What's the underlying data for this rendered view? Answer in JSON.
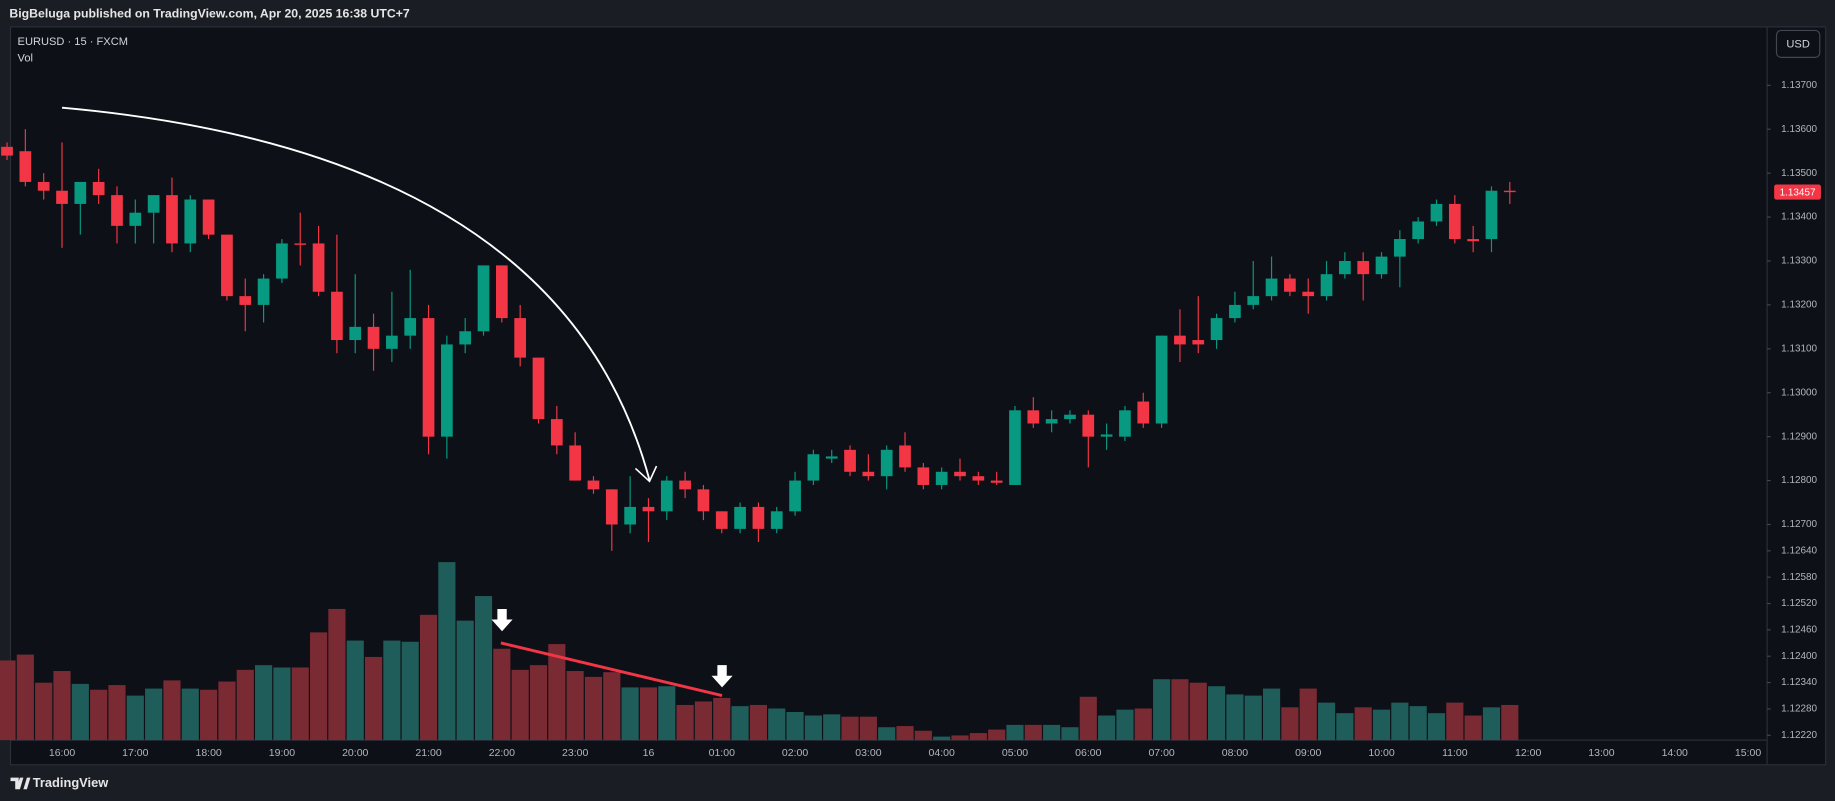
{
  "header": "BigBeluga published on TradingView.com, Apr 20, 2025 16:38 UTC+7",
  "footer": "TradingView",
  "chart_data": {
    "type": "candlestick",
    "symbol": "EURUSD · 15 · FXCM",
    "indicator": "Vol",
    "currency": "USD",
    "colors": {
      "up": "#089981",
      "down": "#f23645",
      "volume_up": "#1e5d59",
      "volume_down": "#7a2a33"
    },
    "open": [
      1.1356,
      1.1355,
      1.1348,
      1.1346,
      1.1343,
      1.1348,
      1.1345,
      1.1338,
      1.1341,
      1.1345,
      1.1334,
      1.1344,
      1.1336,
      1.1322,
      1.132,
      1.1326,
      1.1334,
      1.1334,
      1.1323,
      1.1312,
      1.1315,
      1.131,
      1.1313,
      1.1317,
      1.129,
      1.1311,
      1.1314,
      1.1329,
      1.1317,
      1.1308,
      1.1294,
      1.1288,
      1.128,
      1.1278,
      1.127,
      1.1274,
      1.1273,
      1.128,
      1.1278,
      1.1273,
      1.1269,
      1.1274,
      1.1269,
      1.1273,
      1.128,
      1.1285,
      1.1287,
      1.1282,
      1.1281,
      1.1288,
      1.1283,
      1.1279,
      1.1282,
      1.1281,
      1.128,
      1.1279,
      1.1296,
      1.1293,
      1.1294,
      1.1295,
      1.129,
      1.129,
      1.1298,
      1.1293,
      1.1313,
      1.1312,
      1.1312,
      1.1317,
      1.132,
      1.1322,
      1.1326,
      1.1323,
      1.1322,
      1.1327,
      1.133,
      1.1327,
      1.1331,
      1.1335,
      1.1339,
      1.1343,
      1.1335,
      1.1335,
      1.1346
    ],
    "high": [
      1.1357,
      1.136,
      1.135,
      1.1357,
      1.1348,
      1.1351,
      1.1347,
      1.1344,
      1.1345,
      1.1349,
      1.1345,
      1.1344,
      1.1336,
      1.1326,
      1.1327,
      1.1335,
      1.1341,
      1.1338,
      1.1336,
      1.1327,
      1.1318,
      1.1323,
      1.1328,
      1.132,
      1.1313,
      1.1317,
      1.1329,
      1.1329,
      1.132,
      1.1308,
      1.1297,
      1.1291,
      1.1281,
      1.1278,
      1.1281,
      1.1276,
      1.1281,
      1.1282,
      1.1279,
      1.1273,
      1.1275,
      1.1275,
      1.1274,
      1.1282,
      1.1287,
      1.1287,
      1.1288,
      1.1286,
      1.1288,
      1.1291,
      1.1284,
      1.1283,
      1.1285,
      1.1282,
      1.1282,
      1.1297,
      1.1299,
      1.1296,
      1.1296,
      1.1296,
      1.1293,
      1.1297,
      1.13,
      1.1313,
      1.1319,
      1.1322,
      1.1318,
      1.1323,
      1.133,
      1.1331,
      1.1327,
      1.1326,
      1.133,
      1.1332,
      1.1332,
      1.1332,
      1.1337,
      1.134,
      1.1344,
      1.1345,
      1.1338,
      1.1347,
      1.1348
    ],
    "low": [
      1.1353,
      1.1347,
      1.1344,
      1.1333,
      1.1336,
      1.1343,
      1.1334,
      1.1334,
      1.1334,
      1.1332,
      1.1332,
      1.1335,
      1.1321,
      1.1314,
      1.1316,
      1.1325,
      1.1329,
      1.1322,
      1.1309,
      1.1309,
      1.1305,
      1.1307,
      1.131,
      1.1286,
      1.1285,
      1.1309,
      1.1313,
      1.1316,
      1.1306,
      1.1293,
      1.1286,
      1.128,
      1.1277,
      1.1264,
      1.1268,
      1.1266,
      1.1271,
      1.1276,
      1.1271,
      1.1268,
      1.1268,
      1.1266,
      1.1268,
      1.1272,
      1.1279,
      1.1284,
      1.1281,
      1.128,
      1.1278,
      1.1282,
      1.1278,
      1.1278,
      1.128,
      1.1279,
      1.1279,
      1.1279,
      1.1292,
      1.1291,
      1.1293,
      1.1283,
      1.1287,
      1.1289,
      1.1292,
      1.1292,
      1.1307,
      1.1309,
      1.131,
      1.1316,
      1.1319,
      1.1321,
      1.1322,
      1.1318,
      1.1321,
      1.1326,
      1.1321,
      1.1326,
      1.1324,
      1.1334,
      1.1338,
      1.1334,
      1.1332,
      1.1332,
      1.1343
    ],
    "close": [
      1.1354,
      1.1348,
      1.1346,
      1.1343,
      1.1348,
      1.1345,
      1.1338,
      1.1341,
      1.1345,
      1.1334,
      1.1344,
      1.1336,
      1.1322,
      1.132,
      1.1326,
      1.1334,
      1.13337,
      1.1323,
      1.1312,
      1.1315,
      1.131,
      1.1313,
      1.1317,
      1.129,
      1.1311,
      1.1314,
      1.1329,
      1.1317,
      1.1308,
      1.1294,
      1.1288,
      1.128,
      1.1278,
      1.127,
      1.1274,
      1.1273,
      1.128,
      1.1278,
      1.1273,
      1.1269,
      1.1274,
      1.1269,
      1.1273,
      1.128,
      1.1286,
      1.12855,
      1.1282,
      1.1281,
      1.1287,
      1.1283,
      1.1279,
      1.1282,
      1.1281,
      1.128,
      1.12795,
      1.1296,
      1.1293,
      1.1294,
      1.1295,
      1.129,
      1.12905,
      1.1296,
      1.1293,
      1.1313,
      1.1311,
      1.1311,
      1.1317,
      1.132,
      1.1322,
      1.1326,
      1.1323,
      1.1322,
      1.1327,
      1.133,
      1.1327,
      1.1331,
      1.1335,
      1.1339,
      1.1343,
      1.1335,
      1.13345,
      1.1346,
      1.13457
    ],
    "volume": [
      68,
      73,
      49,
      59,
      48,
      43,
      47,
      38,
      44,
      51,
      44,
      43,
      50,
      60,
      64,
      62,
      62,
      92,
      112,
      85,
      71,
      85,
      84,
      107,
      152,
      102,
      123,
      78,
      60,
      64,
      82,
      59,
      54,
      58,
      45,
      45,
      46,
      30,
      33,
      36,
      29,
      30,
      27,
      24,
      21,
      22,
      20,
      20,
      11,
      12,
      8,
      3,
      4,
      6,
      9,
      13,
      13,
      13,
      11,
      37,
      21,
      26,
      27,
      52,
      52,
      49,
      46,
      39,
      38,
      44,
      28,
      44,
      32,
      23,
      28,
      26,
      32,
      29,
      23,
      32,
      21,
      28,
      30
    ],
    "ylim": [
      1.12209,
      1.13833
    ],
    "yticks": [
      {
        "value": 1.137,
        "label": "1.13700"
      },
      {
        "value": 1.136,
        "label": "1.13600"
      },
      {
        "value": 1.135,
        "label": "1.13500"
      },
      {
        "value": 1.134,
        "label": "1.13400"
      },
      {
        "value": 1.133,
        "label": "1.13300"
      },
      {
        "value": 1.132,
        "label": "1.13200"
      },
      {
        "value": 1.131,
        "label": "1.13100"
      },
      {
        "value": 1.13,
        "label": "1.13000"
      },
      {
        "value": 1.129,
        "label": "1.12900"
      },
      {
        "value": 1.128,
        "label": "1.12800"
      },
      {
        "value": 1.127,
        "label": "1.12700"
      },
      {
        "value": 1.1264,
        "label": "1.12640"
      },
      {
        "value": 1.1258,
        "label": "1.12580"
      },
      {
        "value": 1.1252,
        "label": "1.12520"
      },
      {
        "value": 1.1246,
        "label": "1.12460"
      },
      {
        "value": 1.124,
        "label": "1.12400"
      },
      {
        "value": 1.1234,
        "label": "1.12340"
      },
      {
        "value": 1.1228,
        "label": "1.12280"
      },
      {
        "value": 1.1222,
        "label": "1.12220"
      }
    ],
    "xtick_labels": [
      "16:00",
      "17:00",
      "18:00",
      "19:00",
      "20:00",
      "21:00",
      "22:00",
      "23:00",
      "16",
      "01:00",
      "02:00",
      "03:00",
      "04:00",
      "05:00",
      "06:00",
      "07:00",
      "08:00",
      "09:00",
      "10:00",
      "11:00",
      "12:00",
      "13:00",
      "14:00",
      "15:00"
    ],
    "last_price": 1.13457
  }
}
